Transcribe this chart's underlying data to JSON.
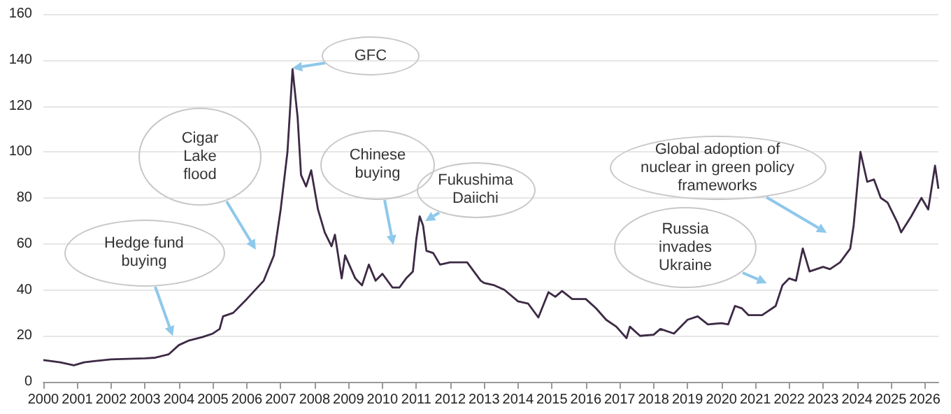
{
  "chart_data": {
    "type": "line",
    "marker": "none",
    "grid": "y",
    "xlim": [
      2000,
      2026.4
    ],
    "xticks": [
      2000,
      2001,
      2002,
      2003,
      2004,
      2005,
      2006,
      2007,
      2008,
      2009,
      2010,
      2011,
      2012,
      2013,
      2014,
      2015,
      2016,
      2017,
      2018,
      2019,
      2020,
      2021,
      2022,
      2023,
      2024,
      2025,
      2026
    ],
    "ylim": [
      0,
      160
    ],
    "yticks": [
      0,
      20,
      40,
      60,
      80,
      100,
      120,
      140,
      160
    ],
    "series": [
      {
        "color": "#3d2a45",
        "x": [
          2000,
          2000.5,
          2000.9,
          2001.2,
          2001.5,
          2002,
          2003,
          2003.3,
          2003.7,
          2004,
          2004.3,
          2004.7,
          2005,
          2005.2,
          2005.3,
          2005.6,
          2006,
          2006.5,
          2006.8,
          2007,
          2007.2,
          2007.35,
          2007.5,
          2007.6,
          2007.75,
          2007.9,
          2008.1,
          2008.3,
          2008.5,
          2008.6,
          2008.8,
          2008.9,
          2009.2,
          2009.4,
          2009.6,
          2009.8,
          2010,
          2010.3,
          2010.5,
          2010.7,
          2010.9,
          2011,
          2011.1,
          2011.2,
          2011.3,
          2011.5,
          2011.7,
          2012,
          2012.5,
          2012.9,
          2013,
          2013.3,
          2013.6,
          2014,
          2014.3,
          2014.6,
          2014.9,
          2015.1,
          2015.3,
          2015.6,
          2016,
          2016.3,
          2016.6,
          2016.9,
          2017.2,
          2017.3,
          2017.6,
          2018,
          2018.2,
          2018.6,
          2019,
          2019.3,
          2019.6,
          2020,
          2020.2,
          2020.4,
          2020.6,
          2020.8,
          2021.2,
          2021.3,
          2021.6,
          2021.8,
          2022,
          2022.2,
          2022.4,
          2022.6,
          2023,
          2023.2,
          2023.5,
          2023.8,
          2023.9,
          2024.1,
          2024.3,
          2024.5,
          2024.7,
          2024.9,
          2025.2,
          2025.3,
          2025.6,
          2025.9,
          2026.1,
          2026.3,
          2026.4
        ],
        "values": [
          9.5,
          8.5,
          7.2,
          8.5,
          9,
          9.8,
          10.2,
          10.5,
          12,
          16,
          18,
          19.5,
          21,
          23,
          28.5,
          30,
          36,
          44,
          55,
          75,
          100,
          136,
          115,
          90,
          85,
          92,
          75,
          65,
          59,
          64,
          45,
          55,
          45,
          42,
          51,
          44,
          47,
          41,
          41,
          45,
          48,
          62,
          72,
          68,
          57,
          56,
          51,
          52,
          52,
          44,
          43,
          42,
          40,
          35,
          34,
          28,
          39,
          37,
          39.5,
          36,
          36,
          32,
          27,
          24,
          19,
          24,
          20,
          20.5,
          23,
          21,
          27,
          28.5,
          25,
          25.5,
          25,
          33,
          32,
          29,
          29,
          30,
          33,
          42,
          45,
          44,
          58,
          48,
          50,
          49,
          52,
          58,
          68,
          100,
          87,
          88,
          80,
          78,
          69,
          65,
          72,
          80,
          75,
          94,
          84
        ]
      }
    ],
    "annotations": [
      "GFC",
      "Cigar Lake flood",
      "Hedge fund buying",
      "Chinese buying",
      "Fukushima Daiichi",
      "Global adoption of nuclear in green policy frameworks",
      "Russia invades Ukraine"
    ]
  }
}
